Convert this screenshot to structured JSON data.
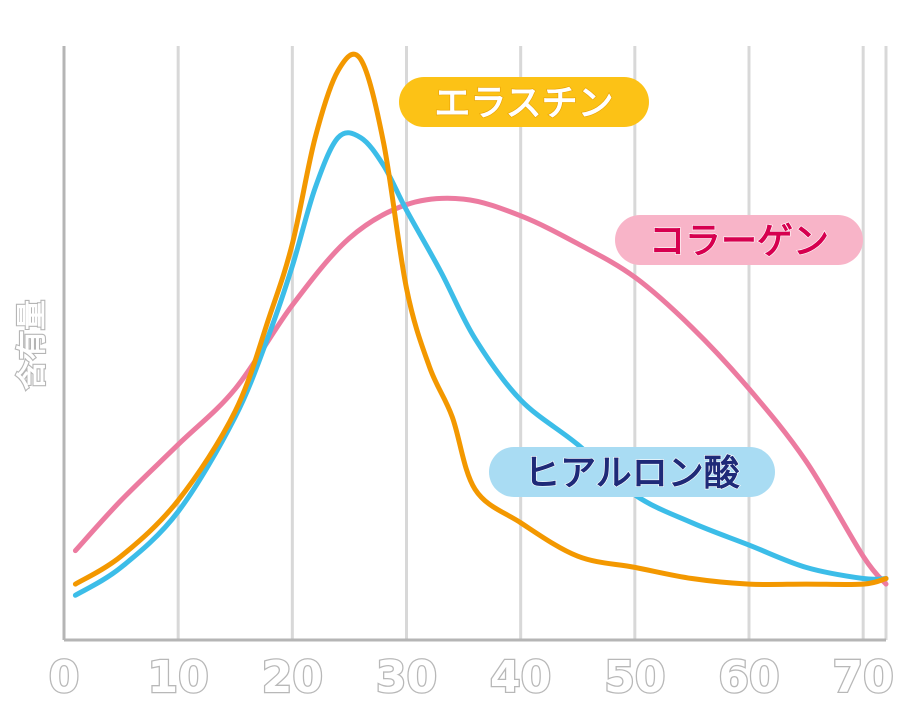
{
  "chart_data": {
    "type": "line",
    "title": "",
    "xlabel": "",
    "ylabel": "含有量",
    "xlim": [
      0,
      72
    ],
    "ylim": [
      0,
      100
    ],
    "x_ticks": [
      0,
      10,
      20,
      30,
      40,
      50,
      60,
      70
    ],
    "grid": "vertical",
    "legend": "inline-labels",
    "series": [
      {
        "name": "エラスチン",
        "color": "#f39800",
        "label_bg": "#fcc216",
        "label_fg": "#ffffff",
        "label_stroke": "#e8a000",
        "x": [
          1,
          5,
          10,
          15,
          18,
          20,
          22,
          24,
          26,
          28,
          30,
          32,
          34,
          36,
          40,
          45,
          50,
          55,
          60,
          65,
          70,
          72
        ],
        "y": [
          5,
          10,
          20,
          36,
          53,
          66,
          85,
          97,
          99,
          84,
          58,
          44,
          35,
          22,
          16,
          10,
          8,
          6,
          5,
          5,
          5,
          6
        ]
      },
      {
        "name": "コラーゲン",
        "color": "#ec7ba0",
        "label_bg": "#f8b4c8",
        "label_fg": "#d6004f",
        "label_stroke": "#ffffff",
        "x": [
          1,
          5,
          10,
          15,
          20,
          25,
          30,
          35,
          40,
          45,
          50,
          55,
          60,
          65,
          70,
          72
        ],
        "y": [
          11,
          20,
          30,
          40,
          55,
          67,
          73,
          74,
          71,
          66,
          60,
          51,
          40,
          27,
          10,
          5
        ]
      },
      {
        "name": "ヒアルロン酸",
        "color": "#3cbde8",
        "label_bg": "#a9dcf3",
        "label_fg": "#1e2a78",
        "label_stroke": "#ffffff",
        "x": [
          1,
          5,
          10,
          15,
          18,
          20,
          22,
          24,
          26,
          28,
          30,
          33,
          36,
          40,
          45,
          50,
          55,
          60,
          65,
          70,
          72
        ],
        "y": [
          3,
          8,
          18,
          35,
          50,
          62,
          76,
          85,
          85,
          80,
          72,
          61,
          49,
          38,
          30,
          21,
          16,
          12,
          8,
          6,
          6
        ]
      }
    ]
  }
}
